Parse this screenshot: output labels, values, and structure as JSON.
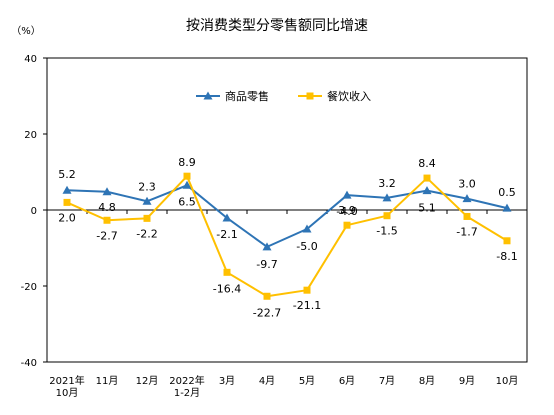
{
  "chart_data": {
    "type": "line",
    "title": "按消费类型分零售额同比增速",
    "y_unit": "（%）",
    "ylim": [
      -40,
      40
    ],
    "yticks": [
      40,
      20,
      0,
      -20,
      -40
    ],
    "grid": false,
    "legend_placement": "top-center",
    "categories": [
      [
        "2021年",
        "10月"
      ],
      [
        "11月"
      ],
      [
        "12月"
      ],
      [
        "2022年",
        "1-2月"
      ],
      [
        "3月"
      ],
      [
        "4月"
      ],
      [
        "5月"
      ],
      [
        "6月"
      ],
      [
        "7月"
      ],
      [
        "8月"
      ],
      [
        "9月"
      ],
      [
        "10月"
      ]
    ],
    "series": [
      {
        "name": "商品零售",
        "color": "#2e74b5",
        "marker": "triangle",
        "values": [
          5.2,
          4.8,
          2.3,
          6.5,
          -2.1,
          -9.7,
          -5.0,
          3.9,
          3.2,
          5.1,
          3.0,
          0.5
        ],
        "labels": [
          "5.2",
          "4.8",
          "2.3",
          "6.5",
          "-2.1",
          "-9.7",
          "-5.0",
          "3.9",
          "3.2",
          "5.1",
          "3.0",
          "0.5"
        ]
      },
      {
        "name": "餐饮收入",
        "color": "#ffc000",
        "marker": "square",
        "values": [
          2.0,
          -2.7,
          -2.2,
          8.9,
          -16.4,
          -22.7,
          -21.1,
          -4.0,
          -1.5,
          8.4,
          -1.7,
          -8.1
        ],
        "labels": [
          "2.0",
          "-2.7",
          "-2.2",
          "8.9",
          "-16.4",
          "-22.7",
          "-21.1",
          "-4.0",
          "-1.5",
          "8.4",
          "-1.7",
          "-8.1"
        ]
      }
    ]
  }
}
